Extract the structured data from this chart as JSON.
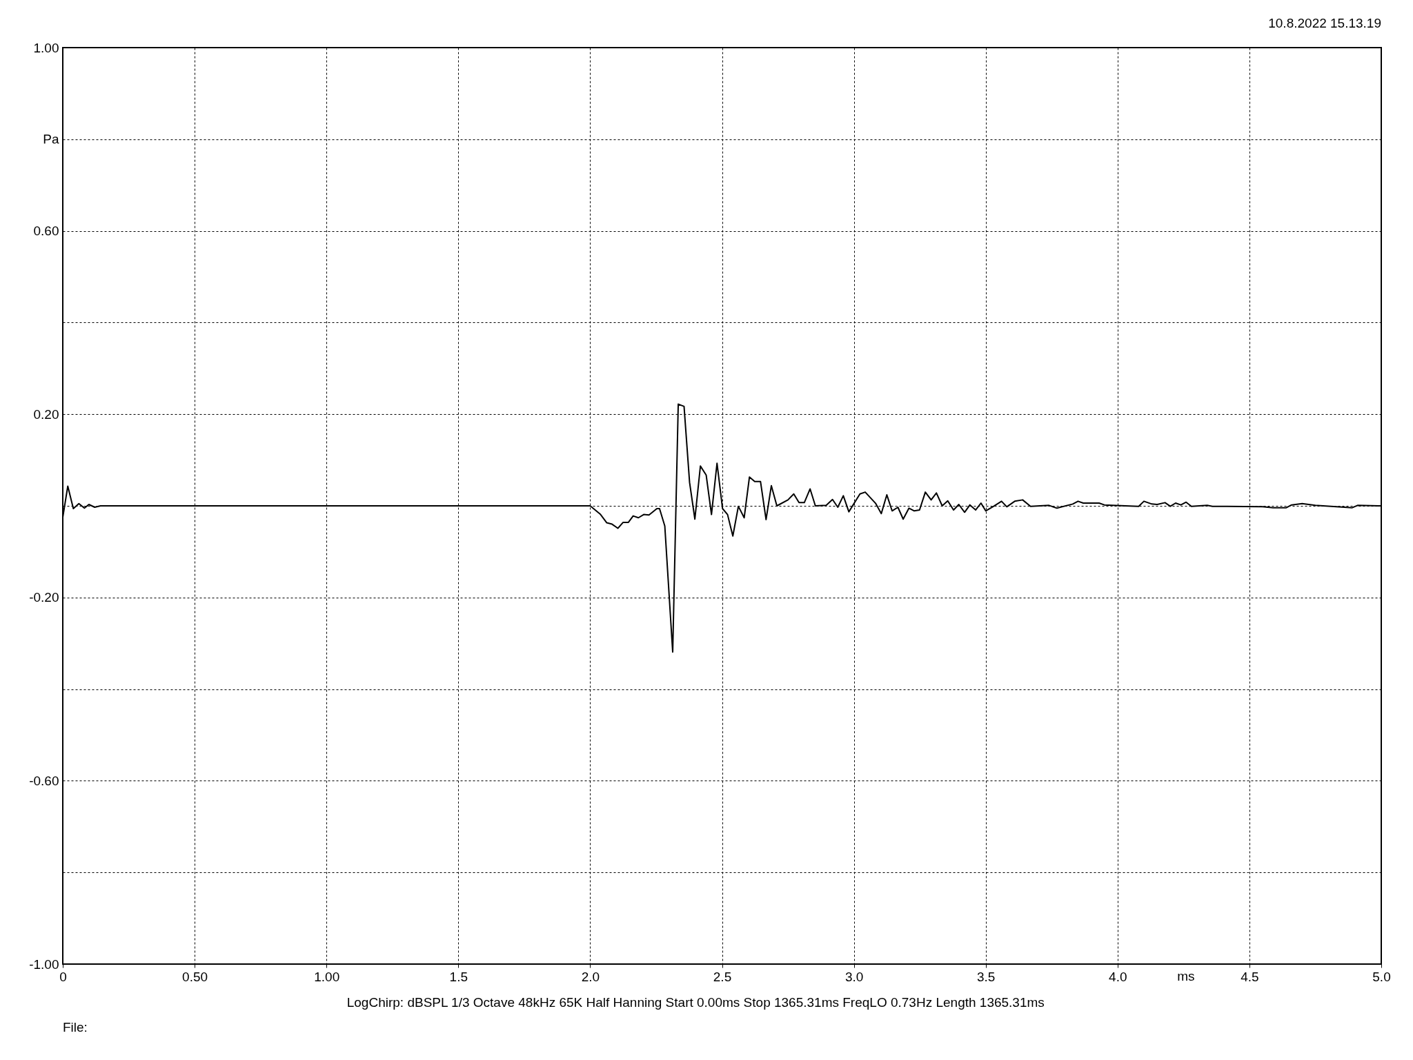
{
  "chart_data": {
    "type": "line",
    "xlabel": "ms",
    "ylabel": "Pa",
    "annotations": [
      "10.8.2022 15.13.19",
      "LogChirp:  dBSPL   1/3 Octave   48kHz   65K   Half Hanning   Start 0.00ms   Stop 1365.31ms   FreqLO 0.73Hz   Length 1365.31ms",
      "File:"
    ],
    "x": [
      0,
      0.019,
      0.04,
      0.061,
      0.082,
      0.099,
      0.121,
      0.143,
      0.178,
      0.24,
      0.56,
      1.95,
      2.0,
      2.038,
      2.063,
      2.083,
      2.105,
      2.125,
      2.145,
      2.163,
      2.183,
      2.203,
      2.223,
      2.253,
      2.263,
      2.283,
      2.313,
      2.334,
      2.356,
      2.377,
      2.397,
      2.418,
      2.44,
      2.46,
      2.481,
      2.502,
      2.521,
      2.541,
      2.562,
      2.584,
      2.604,
      2.624,
      2.646,
      2.667,
      2.687,
      2.708,
      2.75,
      2.772,
      2.792,
      2.812,
      2.834,
      2.854,
      2.895,
      2.919,
      2.939,
      2.96,
      2.981,
      3.023,
      3.043,
      3.083,
      3.104,
      3.125,
      3.145,
      3.167,
      3.187,
      3.209,
      3.229,
      3.249,
      3.271,
      3.293,
      3.313,
      3.335,
      3.356,
      3.378,
      3.398,
      3.42,
      3.44,
      3.462,
      3.482,
      3.5,
      3.53,
      3.56,
      3.58,
      3.61,
      3.64,
      3.67,
      3.74,
      3.77,
      3.83,
      3.85,
      3.87,
      3.93,
      3.95,
      4.03,
      4.08,
      4.1,
      4.13,
      4.15,
      4.18,
      4.2,
      4.22,
      4.24,
      4.26,
      4.28,
      4.34,
      4.36,
      4.55,
      4.59,
      4.64,
      4.66,
      4.7,
      4.75,
      4.89,
      4.91,
      4.99,
      5.0
    ],
    "series": [
      {
        "color": "#000000",
        "values": [
          -0.025,
          0.043,
          -0.006,
          0.005,
          -0.005,
          0.003,
          -0.003,
          0,
          0,
          0,
          0,
          0,
          0,
          -0.018,
          -0.037,
          -0.04,
          -0.049,
          -0.036,
          -0.036,
          -0.022,
          -0.026,
          -0.019,
          -0.02,
          -0.006,
          -0.006,
          -0.044,
          -0.319,
          0.222,
          0.217,
          0.051,
          -0.029,
          0.087,
          0.067,
          -0.019,
          0.093,
          -0.006,
          -0.019,
          -0.066,
          -0.001,
          -0.026,
          0.063,
          0.053,
          0.053,
          -0.03,
          0.044,
          0,
          0.013,
          0.026,
          0.007,
          0.007,
          0.037,
          0,
          0.001,
          0.014,
          -0.003,
          0.022,
          -0.013,
          0.026,
          0.03,
          0.005,
          -0.017,
          0.024,
          -0.011,
          -0.003,
          -0.029,
          -0.005,
          -0.011,
          -0.009,
          0.03,
          0.013,
          0.028,
          0,
          0.011,
          -0.009,
          0.003,
          -0.014,
          0.002,
          -0.009,
          0.006,
          -0.011,
          -0.001,
          0.01,
          -0.002,
          0.01,
          0.013,
          -0.001,
          0.001,
          -0.005,
          0.004,
          0.01,
          0.006,
          0.006,
          0.002,
          0,
          -0.001,
          0.01,
          0.004,
          0.003,
          0.007,
          -0.001,
          0.006,
          0.002,
          0.008,
          -0.001,
          0.001,
          -0.001,
          -0.002,
          -0.004,
          -0.004,
          0.002,
          0.005,
          0.001,
          -0.004,
          0.001,
          0,
          0
        ]
      }
    ],
    "xlim": [
      0,
      5
    ],
    "ylim": [
      -1,
      1
    ],
    "xticks": [
      {
        "value": 0,
        "label": "0"
      },
      {
        "value": 0.5,
        "label": "0.50"
      },
      {
        "value": 1,
        "label": "1.00"
      },
      {
        "value": 1.5,
        "label": "1.5"
      },
      {
        "value": 2,
        "label": "2.0"
      },
      {
        "value": 2.5,
        "label": "2.5"
      },
      {
        "value": 3,
        "label": "3.0"
      },
      {
        "value": 3.5,
        "label": "3.5"
      },
      {
        "value": 4,
        "label": "4.0"
      },
      {
        "value": 4.5,
        "label": "4.5"
      },
      {
        "value": 5,
        "label": "5.0"
      }
    ],
    "yticks": [
      {
        "value": -1,
        "label": "-1.00"
      },
      {
        "value": -0.8,
        "label": null
      },
      {
        "value": -0.6,
        "label": "-0.60"
      },
      {
        "value": -0.4,
        "label": null
      },
      {
        "value": -0.2,
        "label": "-0.20"
      },
      {
        "value": 0,
        "label": null
      },
      {
        "value": 0.2,
        "label": "0.20"
      },
      {
        "value": 0.4,
        "label": null
      },
      {
        "value": 0.6,
        "label": "0.60"
      },
      {
        "value": 0.8,
        "label": null
      },
      {
        "value": 1,
        "label": "1.00"
      }
    ],
    "grid": true,
    "line_style": "solid"
  }
}
